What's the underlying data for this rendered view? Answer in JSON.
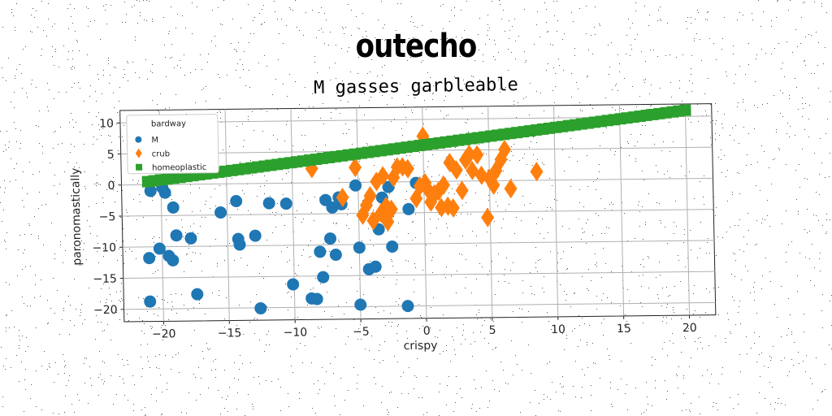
{
  "suptitle": "outecho",
  "chart_data": {
    "type": "scatter",
    "title": "M gasses garbleable",
    "xlabel": "crispy",
    "ylabel": "paronomastically",
    "xlim": [
      -23,
      22
    ],
    "ylim": [
      -22,
      12
    ],
    "xticks": [
      -20,
      -15,
      -10,
      -5,
      0,
      5,
      10,
      15,
      20
    ],
    "yticks": [
      10,
      5,
      0,
      -5,
      -10,
      -15,
      -20
    ],
    "grid": true,
    "legend": {
      "title": "bardway",
      "position": "top-left"
    },
    "series": [
      {
        "name": "M",
        "marker": "circle",
        "color": "#1f77b4",
        "points": [
          [
            -21,
            -18.8
          ],
          [
            -21,
            -11.8
          ],
          [
            -20.8,
            -1
          ],
          [
            -20.2,
            -10.3
          ],
          [
            -19.9,
            -0.5
          ],
          [
            -19.7,
            -1.3
          ],
          [
            -19.5,
            -11.5
          ],
          [
            -19.2,
            -12.2
          ],
          [
            -19.1,
            -3.7
          ],
          [
            -18.9,
            -8.2
          ],
          [
            -17.8,
            -8.7
          ],
          [
            -17.4,
            -17.7
          ],
          [
            -15.5,
            -4.6
          ],
          [
            -14.3,
            -2.8
          ],
          [
            -14.2,
            -8.9
          ],
          [
            -14.1,
            -9.8
          ],
          [
            -12.9,
            -8.4
          ],
          [
            -12.6,
            -20.1
          ],
          [
            -11.8,
            -3.2
          ],
          [
            -10.5,
            -3.3
          ],
          [
            -10.1,
            -16.3
          ],
          [
            -8.7,
            -18.6
          ],
          [
            -8.3,
            -18.7
          ],
          [
            -8,
            -11.1
          ],
          [
            -7.8,
            -15.2
          ],
          [
            -7.5,
            -2.8
          ],
          [
            -7.2,
            -9
          ],
          [
            -7,
            -4
          ],
          [
            -6.8,
            -11.6
          ],
          [
            -6.5,
            -2.4
          ],
          [
            -6.3,
            -3.5
          ],
          [
            -5.2,
            -0.5
          ],
          [
            -5,
            -10.5
          ],
          [
            -5,
            -19.7
          ],
          [
            -4.3,
            -14
          ],
          [
            -3.8,
            -13.6
          ],
          [
            -3.5,
            -7.6
          ],
          [
            -3.2,
            -2.5
          ],
          [
            -2.7,
            -0.8
          ],
          [
            -2.5,
            -10.4
          ],
          [
            -1.4,
            -20
          ],
          [
            -1.2,
            -4.4
          ],
          [
            -0.6,
            -0.2
          ]
        ]
      },
      {
        "name": "crub",
        "marker": "diamond",
        "color": "#ff7f0e",
        "points": [
          [
            -8.5,
            2.3
          ],
          [
            -6.2,
            -2.4
          ],
          [
            -5.2,
            2.4
          ],
          [
            -4.7,
            -5.3
          ],
          [
            -4.4,
            -3.7
          ],
          [
            -4.1,
            -2.2
          ],
          [
            -3.9,
            -6.2
          ],
          [
            -3.6,
            0.1
          ],
          [
            -3.3,
            -5
          ],
          [
            -3.1,
            1
          ],
          [
            -2.9,
            -3.9
          ],
          [
            -2.8,
            -6.4
          ],
          [
            -2.5,
            -4.4
          ],
          [
            -2.3,
            0.7
          ],
          [
            -2,
            2.4
          ],
          [
            -1.6,
            2.4
          ],
          [
            -1.2,
            2.1
          ],
          [
            -0.6,
            -2.7
          ],
          [
            -0.3,
            -0.7
          ],
          [
            0,
            7.3
          ],
          [
            0.1,
            -0.2
          ],
          [
            0.3,
            -1.3
          ],
          [
            0.5,
            -3.3
          ],
          [
            0.8,
            -2
          ],
          [
            1.1,
            -1.6
          ],
          [
            1.3,
            -4.2
          ],
          [
            1.5,
            -0.6
          ],
          [
            1.8,
            -4
          ],
          [
            2,
            3
          ],
          [
            2.2,
            -4.3
          ],
          [
            2.5,
            1.8
          ],
          [
            2.9,
            -1.5
          ],
          [
            3.2,
            3.4
          ],
          [
            3.5,
            4.3
          ],
          [
            3.7,
            1.7
          ],
          [
            4.1,
            4.2
          ],
          [
            4.4,
            0.9
          ],
          [
            4.8,
            -5.9
          ],
          [
            5,
            0.4
          ],
          [
            5.3,
            -0.7
          ],
          [
            5.5,
            1.6
          ],
          [
            5.9,
            3.4
          ],
          [
            6.2,
            5
          ],
          [
            6.6,
            -1.3
          ],
          [
            8.6,
            1.4
          ]
        ]
      },
      {
        "name": "homeoplastic",
        "marker": "square",
        "color": "#2ca02c",
        "line": {
          "x_from": -21,
          "x_to": 20,
          "y_from": 0.5,
          "y_to": 11,
          "count": 84
        }
      }
    ]
  }
}
